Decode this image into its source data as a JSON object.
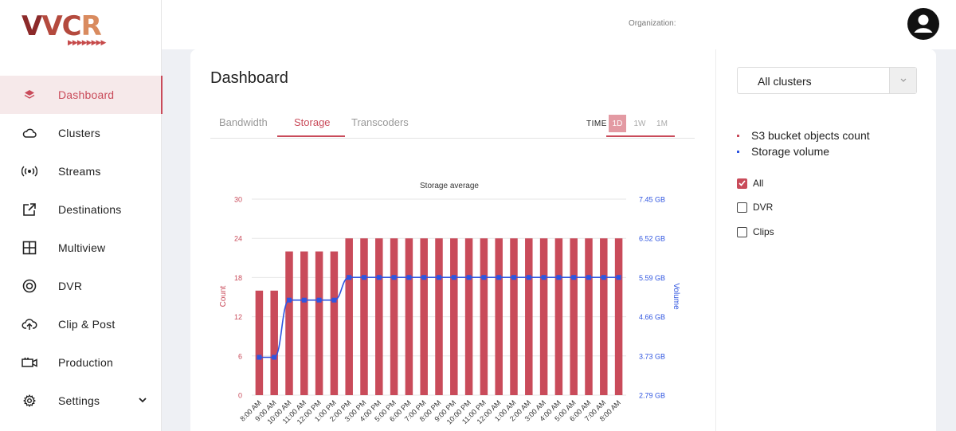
{
  "brand": {
    "logo_text_1": "V",
    "logo_text_2": "V",
    "logo_text_3": "C",
    "logo_text_4": "R",
    "logo_arrows": "▶▶▶▶▶▶▶▶"
  },
  "sidebar": {
    "items": [
      {
        "label": "Dashboard",
        "icon": "layers-icon",
        "active": true
      },
      {
        "label": "Clusters",
        "icon": "cloud-icon"
      },
      {
        "label": "Streams",
        "icon": "broadcast-icon"
      },
      {
        "label": "Destinations",
        "icon": "external-link-icon"
      },
      {
        "label": "Multiview",
        "icon": "grid-icon"
      },
      {
        "label": "DVR",
        "icon": "target-icon"
      },
      {
        "label": "Clip & Post",
        "icon": "cloud-upload-icon"
      },
      {
        "label": "Production",
        "icon": "video-camera-icon"
      },
      {
        "label": "Settings",
        "icon": "gear-icon"
      }
    ]
  },
  "topbar": {
    "org_label": "Organization:"
  },
  "main": {
    "title": "Dashboard",
    "tabs": [
      "Bandwidth",
      "Storage",
      "Transcoders"
    ],
    "active_tab": "Storage",
    "time_label": "TIME",
    "ranges": [
      "1D",
      "1W",
      "1M"
    ],
    "active_range": "1D"
  },
  "right_panel": {
    "cluster_select": "All clusters",
    "legend": [
      {
        "name": "S3 bucket objects count",
        "color": "#c94b5a"
      },
      {
        "name": "Storage volume",
        "color": "#2f55e0"
      }
    ],
    "filters": [
      {
        "label": "All",
        "checked": true
      },
      {
        "label": "DVR",
        "checked": false
      },
      {
        "label": "Clips",
        "checked": false
      }
    ]
  },
  "colors": {
    "accent": "#c94b5a",
    "line": "#2f55e0"
  },
  "chart_data": {
    "type": "bar",
    "title": "Storage average",
    "xlabel": "",
    "ylabel": "Count",
    "y2label": "Volume",
    "ylim": [
      0,
      30
    ],
    "yticks": [
      "0",
      "6",
      "12",
      "18",
      "24",
      "30"
    ],
    "y2ticks": [
      "2.79 GB",
      "3.73 GB",
      "4.66 GB",
      "5.59 GB",
      "6.52 GB",
      "7.45 GB"
    ],
    "y2lim": [
      2.79,
      7.45
    ],
    "grid": true,
    "categories": [
      "8:00 AM",
      "9:00 AM",
      "10:00 AM",
      "11:00 AM",
      "12:00 PM",
      "1:00 PM",
      "2:00 PM",
      "3:00 PM",
      "4:00 PM",
      "5:00 PM",
      "6:00 PM",
      "7:00 PM",
      "8:00 PM",
      "9:00 PM",
      "10:00 PM",
      "11:00 PM",
      "12:00 AM",
      "1:00 AM",
      "2:00 AM",
      "3:00 AM",
      "4:00 AM",
      "5:00 AM",
      "6:00 AM",
      "7:00 AM",
      "8:00 AM"
    ],
    "series": [
      {
        "name": "S3 bucket objects count",
        "type": "bar",
        "axis": "left",
        "values": [
          16,
          16,
          22,
          22,
          22,
          22,
          24,
          24,
          24,
          24,
          24,
          24,
          24,
          24,
          24,
          24,
          24,
          24,
          24,
          24,
          24,
          24,
          24,
          24,
          24
        ]
      },
      {
        "name": "Storage volume",
        "type": "line",
        "axis": "right",
        "values": [
          3.69,
          3.69,
          5.05,
          5.05,
          5.05,
          5.05,
          5.59,
          5.59,
          5.59,
          5.59,
          5.59,
          5.59,
          5.59,
          5.59,
          5.59,
          5.59,
          5.59,
          5.59,
          5.59,
          5.59,
          5.59,
          5.59,
          5.59,
          5.59,
          5.59
        ]
      }
    ]
  }
}
